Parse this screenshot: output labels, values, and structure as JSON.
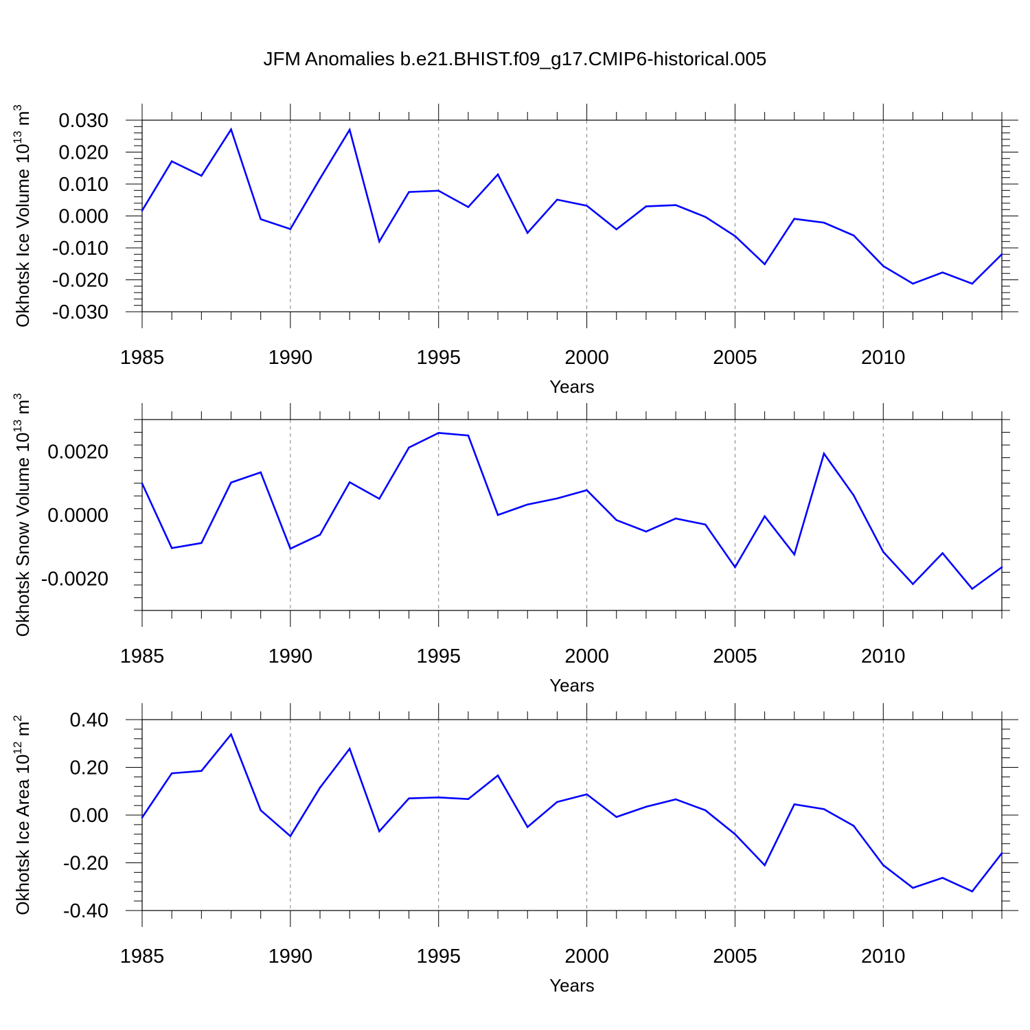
{
  "page": {
    "title": "JFM Anomalies b.e21.BHIST.f09_g17.CMIP6-historical.005"
  },
  "style": {
    "line_color": "#0000ff",
    "axis_color": "#000000",
    "grid_color": "#808080"
  },
  "chart_data": [
    {
      "type": "line",
      "title": "",
      "xlabel": "Years",
      "ylabel": "Okhotsk Ice Volume 10",
      "ylabel_exp": "13",
      "ylabel_unit": " m",
      "ylabel_unit_exp": "3",
      "xlim": [
        1985,
        2014
      ],
      "ylim": [
        -0.03,
        0.03
      ],
      "y_ticks": [
        -0.03,
        -0.02,
        -0.01,
        0.0,
        0.01,
        0.02,
        0.03
      ],
      "y_tick_labels": [
        "-0.030",
        "-0.020",
        "-0.010",
        "0.000",
        "0.010",
        "0.020",
        "0.030"
      ],
      "x_ticks": [
        1985,
        1990,
        1995,
        2000,
        2005,
        2010
      ],
      "x_tick_labels": [
        "1985",
        "1990",
        "1995",
        "2000",
        "2005",
        "2010"
      ],
      "grid": "dashed vertical at major x ticks",
      "x": [
        1985,
        1986,
        1987,
        1988,
        1989,
        1990,
        1991,
        1992,
        1993,
        1994,
        1995,
        1996,
        1997,
        1998,
        1999,
        2000,
        2001,
        2002,
        2003,
        2004,
        2005,
        2006,
        2007,
        2008,
        2009,
        2010,
        2011,
        2012,
        2013,
        2014
      ],
      "series": [
        {
          "name": "Ice Volume",
          "values": [
            0.0017,
            0.0171,
            0.0126,
            0.0271,
            -0.001,
            -0.0041,
            0.0117,
            0.027,
            -0.008,
            0.0075,
            0.0079,
            0.0028,
            0.013,
            -0.0053,
            0.0051,
            0.0032,
            -0.0042,
            0.003,
            0.0034,
            -0.0003,
            -0.0063,
            -0.0151,
            -0.0009,
            -0.0021,
            -0.0061,
            -0.0157,
            -0.0212,
            -0.0177,
            -0.0212,
            -0.012
          ]
        }
      ]
    },
    {
      "type": "line",
      "title": "",
      "xlabel": "Years",
      "ylabel": "Okhotsk Snow Volume 10",
      "ylabel_exp": "13",
      "ylabel_unit": " m",
      "ylabel_unit_exp": "3",
      "xlim": [
        1985,
        2014
      ],
      "ylim": [
        -0.003,
        0.003
      ],
      "y_ticks": [
        -0.002,
        0.0,
        0.002
      ],
      "y_tick_labels": [
        "-0.0020",
        "0.0000",
        "0.0020"
      ],
      "x_ticks": [
        1985,
        1990,
        1995,
        2000,
        2005,
        2010
      ],
      "x_tick_labels": [
        "1985",
        "1990",
        "1995",
        "2000",
        "2005",
        "2010"
      ],
      "grid": "dashed vertical at major x ticks",
      "x": [
        1985,
        1986,
        1987,
        1988,
        1989,
        1990,
        1991,
        1992,
        1993,
        1994,
        1995,
        1996,
        1997,
        1998,
        1999,
        2000,
        2001,
        2002,
        2003,
        2004,
        2005,
        2006,
        2007,
        2008,
        2009,
        2010,
        2011,
        2012,
        2013,
        2014
      ],
      "series": [
        {
          "name": "Snow Volume",
          "values": [
            0.00099,
            -0.00104,
            -0.00088,
            0.00102,
            0.00134,
            -0.00106,
            -0.00062,
            0.00103,
            0.00051,
            0.00212,
            0.00258,
            0.0025,
            0.0,
            0.00033,
            0.00052,
            0.00078,
            -0.00016,
            -0.00052,
            -0.00011,
            -0.0003,
            -0.00164,
            -4e-05,
            -0.00124,
            0.00193,
            0.00062,
            -0.00116,
            -0.00217,
            -0.0012,
            -0.00232,
            -0.00164
          ]
        }
      ]
    },
    {
      "type": "line",
      "title": "",
      "xlabel": "Years",
      "ylabel": "Okhotsk Ice Area 10",
      "ylabel_exp": "12",
      "ylabel_unit": " m",
      "ylabel_unit_exp": "2",
      "xlim": [
        1985,
        2014
      ],
      "ylim": [
        -0.4,
        0.4
      ],
      "y_ticks": [
        -0.4,
        -0.2,
        0.0,
        0.2,
        0.4
      ],
      "y_tick_labels": [
        "-0.40",
        "-0.20",
        "0.00",
        "0.20",
        "0.40"
      ],
      "x_ticks": [
        1985,
        1990,
        1995,
        2000,
        2005,
        2010
      ],
      "x_tick_labels": [
        "1985",
        "1990",
        "1995",
        "2000",
        "2005",
        "2010"
      ],
      "grid": "dashed vertical at major x ticks",
      "x": [
        1985,
        1986,
        1987,
        1988,
        1989,
        1990,
        1991,
        1992,
        1993,
        1994,
        1995,
        1996,
        1997,
        1998,
        1999,
        2000,
        2001,
        2002,
        2003,
        2004,
        2005,
        2006,
        2007,
        2008,
        2009,
        2010,
        2011,
        2012,
        2013,
        2014
      ],
      "series": [
        {
          "name": "Ice Area",
          "values": [
            -0.01,
            0.175,
            0.185,
            0.338,
            0.02,
            -0.088,
            0.115,
            0.278,
            -0.068,
            0.07,
            0.074,
            0.067,
            0.166,
            -0.05,
            0.055,
            0.087,
            -0.008,
            0.035,
            0.066,
            0.02,
            -0.08,
            -0.21,
            0.045,
            0.025,
            -0.045,
            -0.21,
            -0.305,
            -0.263,
            -0.32,
            -0.16
          ]
        }
      ]
    }
  ]
}
